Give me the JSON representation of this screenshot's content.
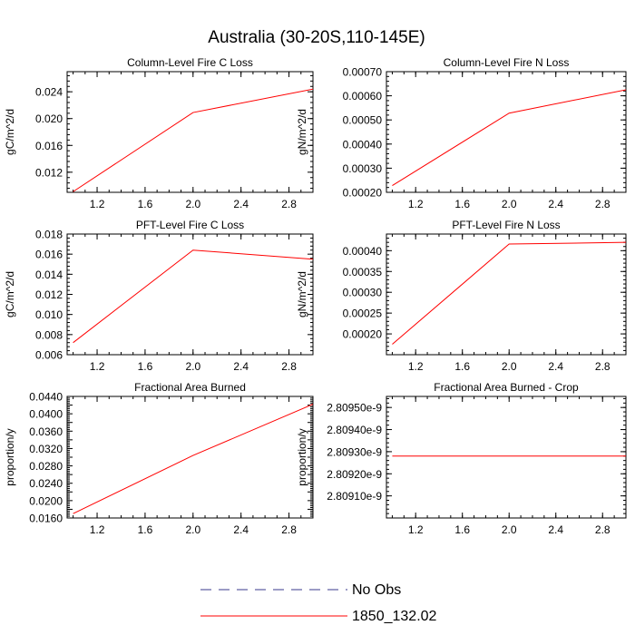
{
  "figure": {
    "title": "Australia (30-20S,110-145E)"
  },
  "legend": {
    "entries": [
      {
        "label": "No Obs",
        "color": "#3a3a8c",
        "style": "dashed"
      },
      {
        "label": "1850_132.02",
        "color": "#ff0000",
        "style": "solid"
      }
    ]
  },
  "chart_data": [
    {
      "type": "line",
      "title": "Column-Level Fire C Loss",
      "ylabel": "gC/m^2/d",
      "xlim": [
        0.95,
        3.0
      ],
      "ylim": [
        0.009,
        0.027
      ],
      "xticks": [
        1.2,
        1.6,
        2.0,
        2.4,
        2.8
      ],
      "xtick_labels": [
        "1.2",
        "1.6",
        "2.0",
        "2.4",
        "2.8"
      ],
      "yticks": [
        0.012,
        0.016,
        0.02,
        0.024
      ],
      "ytick_labels": [
        "0.012",
        "0.016",
        "0.020",
        "0.024"
      ],
      "series": [
        {
          "name": "1850_132.02",
          "color": "#ff0000",
          "x": [
            1.0,
            2.0,
            3.0
          ],
          "y": [
            0.0091,
            0.0209,
            0.0244
          ]
        }
      ]
    },
    {
      "type": "line",
      "title": "Column-Level Fire N Loss",
      "ylabel": "gN/m^2/d",
      "xlim": [
        0.95,
        3.0
      ],
      "ylim": [
        0.0002,
        0.0007
      ],
      "xticks": [
        1.2,
        1.6,
        2.0,
        2.4,
        2.8
      ],
      "xtick_labels": [
        "1.2",
        "1.6",
        "2.0",
        "2.4",
        "2.8"
      ],
      "yticks": [
        0.0002,
        0.0003,
        0.0004,
        0.0005,
        0.0006,
        0.0007
      ],
      "ytick_labels": [
        "0.00020",
        "0.00030",
        "0.00040",
        "0.00050",
        "0.00060",
        "0.00070"
      ],
      "series": [
        {
          "name": "1850_132.02",
          "color": "#ff0000",
          "x": [
            1.0,
            2.0,
            3.0
          ],
          "y": [
            0.000228,
            0.000528,
            0.000625
          ]
        }
      ]
    },
    {
      "type": "line",
      "title": "PFT-Level Fire C Loss",
      "ylabel": "gC/m^2/d",
      "xlim": [
        0.95,
        3.0
      ],
      "ylim": [
        0.006,
        0.018
      ],
      "xticks": [
        1.2,
        1.6,
        2.0,
        2.4,
        2.8
      ],
      "xtick_labels": [
        "1.2",
        "1.6",
        "2.0",
        "2.4",
        "2.8"
      ],
      "yticks": [
        0.006,
        0.008,
        0.01,
        0.012,
        0.014,
        0.016,
        0.018
      ],
      "ytick_labels": [
        "0.006",
        "0.008",
        "0.010",
        "0.012",
        "0.014",
        "0.016",
        "0.018"
      ],
      "series": [
        {
          "name": "1850_132.02",
          "color": "#ff0000",
          "x": [
            1.0,
            2.0,
            3.0
          ],
          "y": [
            0.0072,
            0.0164,
            0.0155
          ]
        }
      ]
    },
    {
      "type": "line",
      "title": "PFT-Level Fire N Loss",
      "ylabel": "gN/m^2/d",
      "xlim": [
        0.95,
        3.0
      ],
      "ylim": [
        0.00015,
        0.00044
      ],
      "xticks": [
        1.2,
        1.6,
        2.0,
        2.4,
        2.8
      ],
      "xtick_labels": [
        "1.2",
        "1.6",
        "2.0",
        "2.4",
        "2.8"
      ],
      "yticks": [
        0.0002,
        0.00025,
        0.0003,
        0.00035,
        0.0004
      ],
      "ytick_labels": [
        "0.00020",
        "0.00025",
        "0.00030",
        "0.00035",
        "0.00040"
      ],
      "series": [
        {
          "name": "1850_132.02",
          "color": "#ff0000",
          "x": [
            1.0,
            2.0,
            3.0
          ],
          "y": [
            0.000175,
            0.000416,
            0.00042
          ]
        }
      ]
    },
    {
      "type": "line",
      "title": "Fractional Area Burned",
      "ylabel": "proportion/y",
      "xlim": [
        0.95,
        3.0
      ],
      "ylim": [
        0.016,
        0.044
      ],
      "xticks": [
        1.2,
        1.6,
        2.0,
        2.4,
        2.8
      ],
      "xtick_labels": [
        "1.2",
        "1.6",
        "2.0",
        "2.4",
        "2.8"
      ],
      "yticks": [
        0.016,
        0.018,
        0.02,
        0.022,
        0.024,
        0.026,
        0.028,
        0.03,
        0.032,
        0.034,
        0.036,
        0.038,
        0.04,
        0.042,
        0.044
      ],
      "ytick_labels": [
        "0.0160",
        "",
        "0.0200",
        "",
        "0.0240",
        "",
        "0.0280",
        "",
        "0.0320",
        "",
        "0.0360",
        "",
        "0.0400",
        "",
        "0.0440"
      ],
      "series": [
        {
          "name": "1850_132.02",
          "color": "#ff0000",
          "x": [
            1.0,
            2.0,
            3.0
          ],
          "y": [
            0.017,
            0.0304,
            0.0422
          ]
        }
      ]
    },
    {
      "type": "line",
      "title": "Fractional Area Burned - Crop",
      "ylabel": "proportion/y",
      "xlim": [
        0.95,
        3.0
      ],
      "ylim": [
        2.809e-09,
        2.80955e-09
      ],
      "xticks": [
        1.2,
        1.6,
        2.0,
        2.4,
        2.8
      ],
      "xtick_labels": [
        "1.2",
        "1.6",
        "2.0",
        "2.4",
        "2.8"
      ],
      "yticks": [
        2.8091e-09,
        2.8092e-09,
        2.8093e-09,
        2.8094e-09,
        2.8095e-09
      ],
      "ytick_labels": [
        "2.80910e-9",
        "2.80920e-9",
        "2.80930e-9",
        "2.80940e-9",
        "2.80950e-9"
      ],
      "series": [
        {
          "name": "1850_132.02",
          "color": "#ff0000",
          "x": [
            1.0,
            2.0,
            3.0
          ],
          "y": [
            2.80928e-09,
            2.80928e-09,
            2.80928e-09
          ]
        }
      ]
    }
  ]
}
